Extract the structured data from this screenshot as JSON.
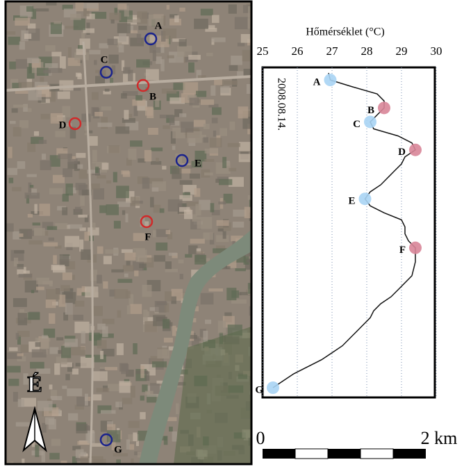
{
  "map": {
    "points": [
      {
        "label": "A",
        "color": "#1a238c"
      },
      {
        "label": "B",
        "color": "#d02a2a"
      },
      {
        "label": "C",
        "color": "#1a238c"
      },
      {
        "label": "D",
        "color": "#d02a2a"
      },
      {
        "label": "E",
        "color": "#1a238c"
      },
      {
        "label": "F",
        "color": "#d02a2a"
      },
      {
        "label": "G",
        "color": "#1a238c"
      }
    ],
    "north": "É",
    "scale_start": "0",
    "scale_end": "2 km"
  },
  "chart_data": {
    "type": "line",
    "title": "Hőmérséklet (°C)",
    "date": "2008.08.14.",
    "xlim": [
      25,
      30
    ],
    "xticks": [
      25,
      26,
      27,
      28,
      29,
      30
    ],
    "grid": true,
    "color": "#111111",
    "categories": [
      null,
      "A",
      null,
      null,
      null,
      "B",
      null,
      "C",
      null,
      null,
      null,
      "D",
      null,
      null,
      null,
      null,
      null,
      null,
      "E",
      null,
      null,
      null,
      null,
      null,
      null,
      "F",
      null,
      null,
      null,
      null,
      null,
      null,
      null,
      null,
      null,
      null,
      null,
      null,
      null,
      null,
      null,
      null,
      null,
      null,
      null,
      "G"
    ],
    "values": [
      26.9,
      26.95,
      27.6,
      28.3,
      28.5,
      28.5,
      28.3,
      28.1,
      28.2,
      28.9,
      29.3,
      29.4,
      29.1,
      29.0,
      28.8,
      28.6,
      28.4,
      28.1,
      27.95,
      28.1,
      28.5,
      29.0,
      29.1,
      29.1,
      29.2,
      29.4,
      29.4,
      29.4,
      29.35,
      29.3,
      29.1,
      28.9,
      28.7,
      28.4,
      28.2,
      28.1,
      27.9,
      27.7,
      27.5,
      27.3,
      27.0,
      26.7,
      26.3,
      25.9,
      25.6,
      25.3
    ],
    "marker_colors": [
      null,
      "#a8d4f4",
      null,
      null,
      null,
      "#d88598",
      null,
      "#a8d4f4",
      null,
      null,
      null,
      "#d88598",
      null,
      null,
      null,
      null,
      null,
      null,
      "#a8d4f4",
      null,
      null,
      null,
      null,
      null,
      null,
      "#d88598",
      null,
      null,
      null,
      null,
      null,
      null,
      null,
      null,
      null,
      null,
      null,
      null,
      null,
      null,
      null,
      null,
      null,
      null,
      null,
      "#a8d4f4"
    ]
  }
}
